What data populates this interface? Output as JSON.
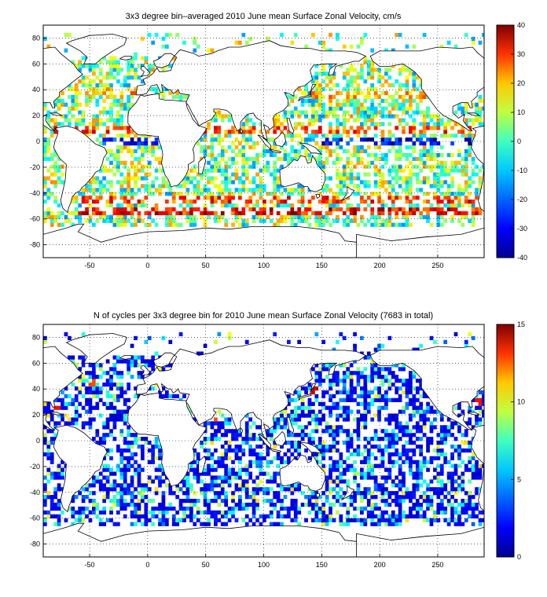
{
  "chart_data": [
    {
      "type": "heatmap",
      "title": "3x3 degree bin–averaged 2010 June mean Surface Zonal Velocity, cm/s",
      "xlabel": "",
      "ylabel": "",
      "xlim": [
        -90,
        290
      ],
      "ylim": [
        -90,
        90
      ],
      "x_ticks": [
        -50,
        0,
        50,
        100,
        150,
        200,
        250
      ],
      "y_ticks": [
        80,
        60,
        40,
        20,
        0,
        -20,
        -40,
        -60,
        -80
      ],
      "grid": true,
      "grid_style": "dotted",
      "bin_size_deg": 3,
      "colormap": "jet",
      "colorbar": {
        "min": -40,
        "max": 40,
        "ticks": [
          40,
          30,
          20,
          10,
          0,
          -10,
          -20,
          -30,
          -40
        ]
      },
      "units": "cm/s",
      "bands": [
        {
          "lat": 8,
          "lon": [
            -80,
            290
          ],
          "value": 24
        },
        {
          "lat": 0,
          "lon": [
            -40,
            10
          ],
          "value": -30
        },
        {
          "lat": 0,
          "lon": [
            150,
            280
          ],
          "value": -30
        },
        {
          "lat": -45,
          "lon": [
            -60,
            290
          ],
          "value": 25
        },
        {
          "lat": -55,
          "lon": [
            -60,
            290
          ],
          "value": 30
        },
        {
          "lat": 40,
          "lon": [
            -75,
            -10
          ],
          "value": 15
        },
        {
          "lat": 36,
          "lon": [
            140,
            240
          ],
          "value": 15
        }
      ]
    },
    {
      "type": "heatmap",
      "title": "N of cycles per 3x3 degree bin for 2010 June mean Surface Zonal Velocity (7683 in total)",
      "xlabel": "",
      "ylabel": "",
      "xlim": [
        -90,
        290
      ],
      "ylim": [
        -90,
        90
      ],
      "x_ticks": [
        -50,
        0,
        50,
        100,
        150,
        200,
        250
      ],
      "y_ticks": [
        80,
        60,
        40,
        20,
        0,
        -20,
        -40,
        -60,
        -80
      ],
      "grid": true,
      "grid_style": "dotted",
      "bin_size_deg": 3,
      "colormap": "jet",
      "colorbar": {
        "min": 0,
        "max": 15,
        "ticks": [
          15,
          10,
          5,
          0
        ]
      },
      "total_cycles": 7683,
      "typical_value": 2,
      "hotspots": [
        {
          "lat": 38,
          "lon": 145,
          "value": 14
        },
        {
          "lat": 28,
          "lon": -78,
          "value": 13
        },
        {
          "lat": 30,
          "lon": 285,
          "value": 13
        },
        {
          "lat": 44,
          "lon": -48,
          "value": 12
        },
        {
          "lat": 18,
          "lon": 56,
          "value": 12
        }
      ]
    }
  ],
  "colors": {
    "land_outline": "#000000",
    "background": "#ffffff",
    "colormap_stops": [
      "#00008f",
      "#0000ff",
      "#0080ff",
      "#00ffff",
      "#80ff80",
      "#ffff00",
      "#ff8000",
      "#ff0000",
      "#800000"
    ]
  }
}
